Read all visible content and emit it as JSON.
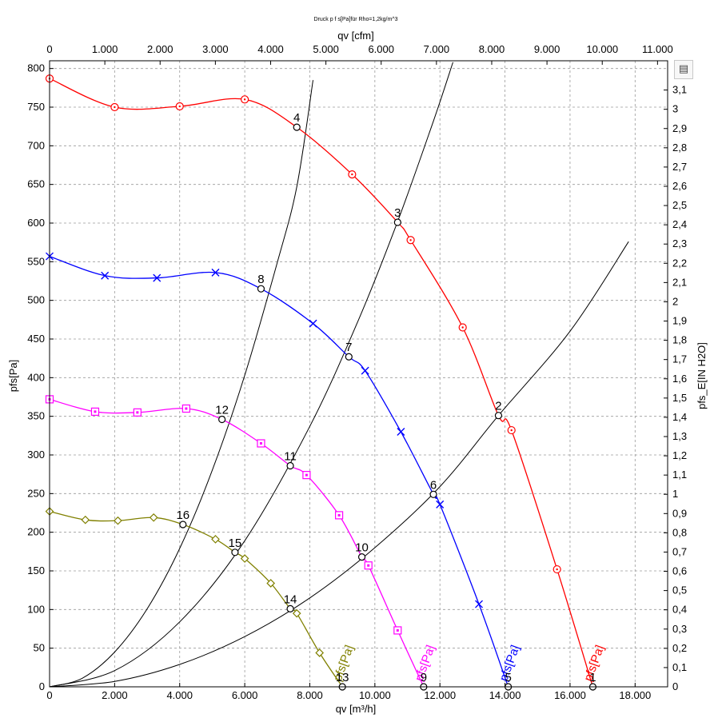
{
  "chart_data": {
    "type": "line",
    "title": "Druck p f s[Pa]für Rho=1,2kg/m^3",
    "xlabel": "qv [m³/h]",
    "ylabel": "pfs[Pa]",
    "x2label": "qv [cfm]",
    "y2label": "pfs_E[IN H2O]",
    "xlim": [
      0,
      19000
    ],
    "ylim": [
      0,
      810
    ],
    "x2lim": [
      0,
      11183
    ],
    "y2lim": [
      0,
      3.252
    ],
    "grid": true,
    "x_ticks": [
      "0",
      "2.000",
      "4.000",
      "6.000",
      "8.000",
      "10.000",
      "12.000",
      "14.000",
      "16.000",
      "18.000"
    ],
    "y_ticks": [
      "0",
      "50",
      "100",
      "150",
      "200",
      "250",
      "300",
      "350",
      "400",
      "450",
      "500",
      "550",
      "600",
      "650",
      "700",
      "750",
      "800"
    ],
    "x2_ticks": [
      "0",
      "1.000",
      "2.000",
      "3.000",
      "4.000",
      "5.000",
      "6.000",
      "7.000",
      "8.000",
      "9.000",
      "10.000",
      "11.000"
    ],
    "y2_ticks": [
      "0",
      "0,1",
      "0,2",
      "0,3",
      "0,4",
      "0,5",
      "0,6",
      "0,7",
      "0,8",
      "0,9",
      "1",
      "1,1",
      "1,2",
      "1,3",
      "1,4",
      "1,5",
      "1,6",
      "1,7",
      "1,8",
      "1,9",
      "2",
      "2,1",
      "2,2",
      "2,3",
      "2,4",
      "2,5",
      "2,6",
      "2,7",
      "2,8",
      "2,9",
      "3",
      "3,1"
    ],
    "fan_curves": [
      {
        "name": "pfs[Pa]",
        "color": "#ff0000",
        "marker": "circle",
        "x": [
          0,
          2000,
          4000,
          6000,
          7600,
          9300,
          10700,
          11100,
          12700,
          13800,
          14200,
          15600,
          16700
        ],
        "y": [
          787,
          750,
          751,
          760,
          724,
          663,
          601,
          578,
          465,
          351,
          332,
          152,
          0
        ]
      },
      {
        "name": "pfs[Pa]",
        "color": "#0000ff",
        "marker": "x",
        "x": [
          0,
          1700,
          3300,
          5100,
          6500,
          8100,
          9200,
          9700,
          10800,
          11800,
          12000,
          13200,
          14100
        ],
        "y": [
          557,
          532,
          529,
          536,
          515,
          470,
          427,
          409,
          330,
          249,
          236,
          107,
          0
        ]
      },
      {
        "name": "pfs[Pa]",
        "color": "#ff00ff",
        "marker": "square",
        "x": [
          0,
          1400,
          2700,
          4200,
          5300,
          6500,
          7400,
          7900,
          8900,
          9600,
          9800,
          10700,
          11500
        ],
        "y": [
          372,
          356,
          355,
          360,
          346,
          315,
          286,
          274,
          222,
          168,
          157,
          73,
          0
        ]
      },
      {
        "name": "pfs[Pa]",
        "color": "#808000",
        "marker": "diamond",
        "x": [
          0,
          1100,
          2100,
          3200,
          4100,
          5100,
          5700,
          6000,
          6800,
          7400,
          7600,
          8300,
          9000
        ],
        "y": [
          227,
          216,
          215,
          219,
          210,
          191,
          174,
          166,
          134,
          101,
          95,
          44,
          0
        ]
      }
    ],
    "system_curves": [
      {
        "x": [
          0,
          1000,
          2000,
          3000,
          4000,
          5000,
          6000,
          7000,
          7600,
          8100
        ],
        "y": [
          0,
          11,
          45,
          101,
          179,
          280,
          403,
          549,
          647,
          785
        ]
      },
      {
        "x": [
          0,
          2000,
          4000,
          6000,
          8000,
          9500,
          10700,
          11800,
          12400
        ],
        "y": [
          0,
          21,
          84,
          189,
          337,
          475,
          602,
          732,
          808
        ]
      },
      {
        "x": [
          0,
          2000,
          4000,
          6000,
          8000,
          10000,
          12000,
          13800,
          16000,
          17800
        ],
        "y": [
          0,
          7,
          29,
          65,
          115,
          180,
          259,
          351,
          460,
          576
        ]
      }
    ],
    "operating_points": [
      {
        "label": "1",
        "x": 16700,
        "y": 0
      },
      {
        "label": "2",
        "x": 13800,
        "y": 351
      },
      {
        "label": "3",
        "x": 10700,
        "y": 601
      },
      {
        "label": "4",
        "x": 7600,
        "y": 724
      },
      {
        "label": "5",
        "x": 14100,
        "y": 0
      },
      {
        "label": "6",
        "x": 11800,
        "y": 249
      },
      {
        "label": "7",
        "x": 9200,
        "y": 427
      },
      {
        "label": "8",
        "x": 6500,
        "y": 515
      },
      {
        "label": "9",
        "x": 11500,
        "y": 0
      },
      {
        "label": "10",
        "x": 9600,
        "y": 168
      },
      {
        "label": "11",
        "x": 7400,
        "y": 286
      },
      {
        "label": "12",
        "x": 5300,
        "y": 346
      },
      {
        "label": "13",
        "x": 9000,
        "y": 0
      },
      {
        "label": "14",
        "x": 7400,
        "y": 101
      },
      {
        "label": "15",
        "x": 5700,
        "y": 174
      },
      {
        "label": "16",
        "x": 4100,
        "y": 210
      }
    ]
  },
  "ui": {
    "print_icon": "print-icon"
  }
}
